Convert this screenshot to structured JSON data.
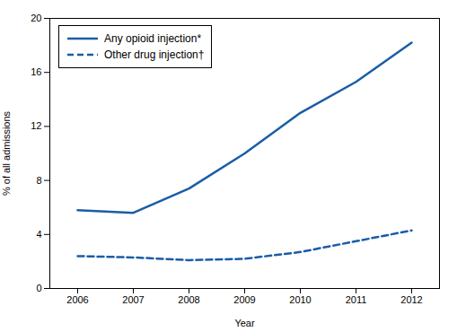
{
  "chart_data": {
    "type": "line",
    "xlabel": "Year",
    "ylabel": "% of all admissions",
    "x": [
      2006,
      2007,
      2008,
      2009,
      2010,
      2011,
      2012
    ],
    "series": [
      {
        "name": "Any opioid injection*",
        "color": "#1a5da6",
        "line_style": "solid",
        "values": [
          5.8,
          5.6,
          7.4,
          10.0,
          13.0,
          15.3,
          18.2
        ]
      },
      {
        "name": "Other drug injection†",
        "color": "#1a5da6",
        "line_style": "dashed",
        "values": [
          2.4,
          2.3,
          2.1,
          2.2,
          2.7,
          3.5,
          4.3
        ]
      }
    ],
    "xlim": [
      2005.5,
      2012.5
    ],
    "xticks": [
      2006,
      2007,
      2008,
      2009,
      2010,
      2011,
      2012
    ],
    "ylim": [
      0,
      20
    ],
    "yticks": [
      0,
      4,
      8,
      12,
      16,
      20
    ],
    "grid": false,
    "legend": "upper left"
  }
}
